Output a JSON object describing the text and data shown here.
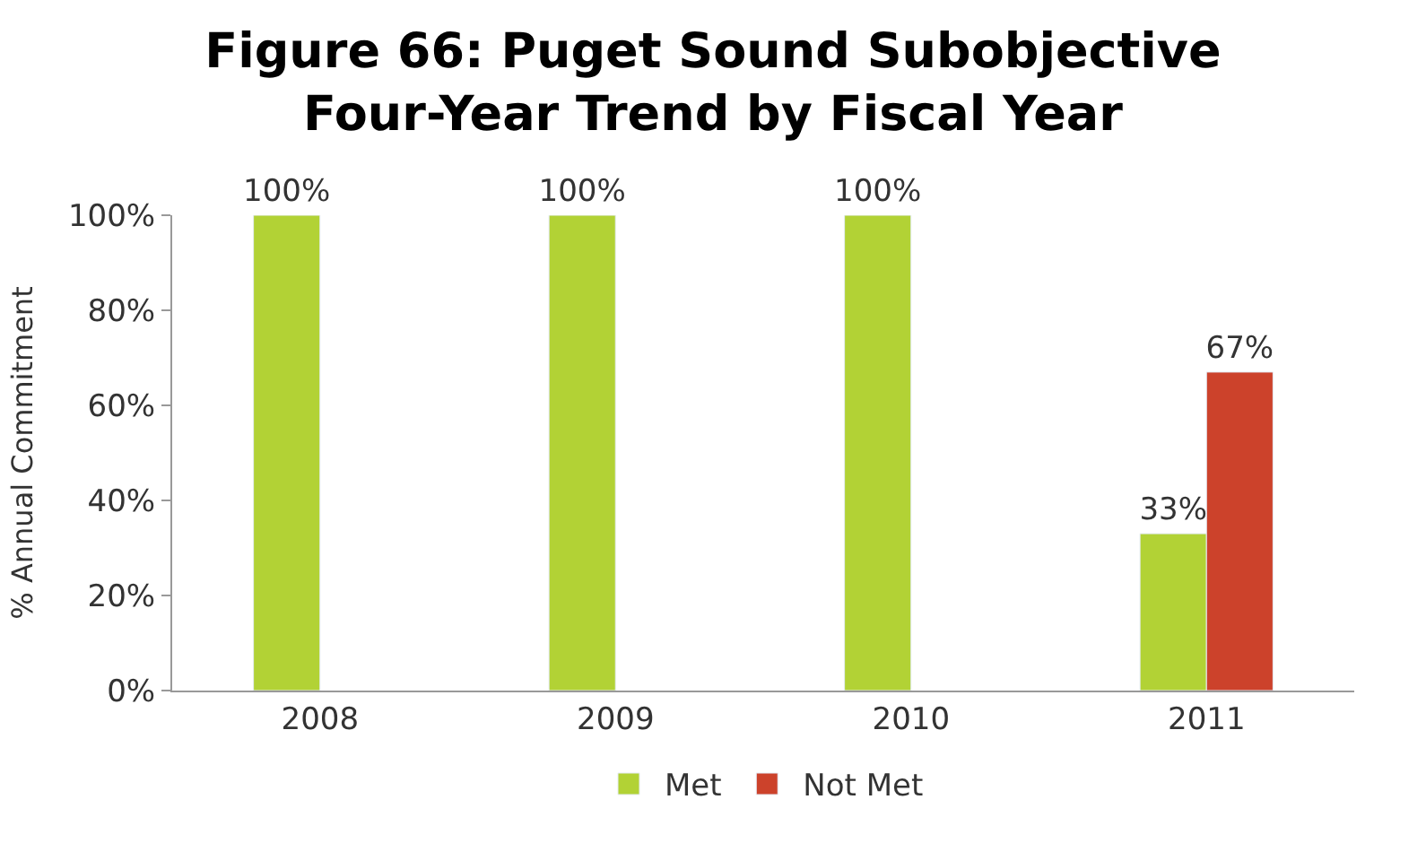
{
  "chart_data": {
    "type": "bar",
    "title": "Figure 66: Puget Sound Subobjective\nFour-Year Trend by Fiscal Year",
    "ylabel": "% Annual Commitment",
    "categories": [
      "2008",
      "2009",
      "2010",
      "2011"
    ],
    "series": [
      {
        "name": "Met",
        "color": "#b2d235",
        "values": [
          100,
          100,
          100,
          33
        ],
        "value_labels": [
          "100%",
          "100%",
          "100%",
          "33%"
        ]
      },
      {
        "name": "Not Met",
        "color": "#cc422b",
        "values": [
          null,
          null,
          null,
          67
        ],
        "value_labels": [
          null,
          null,
          null,
          "67%"
        ]
      }
    ],
    "ylim": [
      0,
      100
    ],
    "yticks": [
      {
        "value": 0,
        "label": "0%"
      },
      {
        "value": 20,
        "label": "20%"
      },
      {
        "value": 40,
        "label": "40%"
      },
      {
        "value": 60,
        "label": "60%"
      },
      {
        "value": 80,
        "label": "80%"
      },
      {
        "value": 100,
        "label": "100%"
      }
    ],
    "legend": "bottom"
  }
}
